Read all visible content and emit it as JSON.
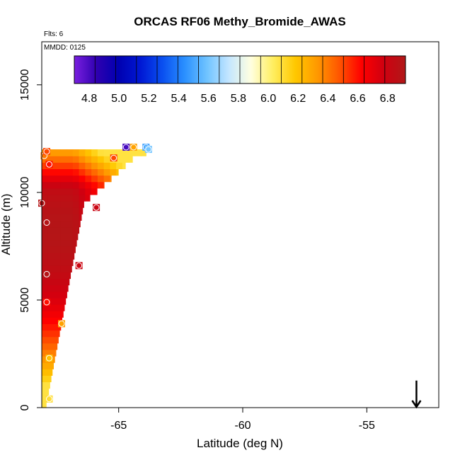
{
  "chart_data": {
    "type": "heatmap",
    "title": "ORCAS RF06 Methy_Bromide_AWAS",
    "note_flts": "Flts: 6",
    "note_mmdd": "MMDD: 0125",
    "xlabel": "Latitude (deg N)",
    "ylabel": "Altitude (m)",
    "xlim": [
      -68.1,
      -52.1
    ],
    "ylim": [
      0,
      17000
    ],
    "x_ticks": [
      -65,
      -60,
      -55
    ],
    "x_tick_labels": [
      "-65",
      "-60",
      "-55"
    ],
    "y_ticks": [
      0,
      5000,
      10000,
      15000
    ],
    "y_tick_labels": [
      "0",
      "5000",
      "10000",
      "15000"
    ],
    "colorbar": {
      "range": [
        4.7,
        6.92
      ],
      "ticks": [
        4.8,
        5.0,
        5.2,
        5.4,
        5.6,
        5.8,
        6.0,
        6.2,
        6.4,
        6.6,
        6.8
      ],
      "tick_labels": [
        "4.8",
        "5.0",
        "5.2",
        "5.4",
        "5.6",
        "5.8",
        "6.0",
        "6.2",
        "6.4",
        "6.6",
        "6.8"
      ],
      "colors": [
        "#7a1fe0",
        "#2f00b0",
        "#0000b0",
        "#0018d4",
        "#0a50f0",
        "#2a90ff",
        "#6fc3ff",
        "#c4e6ff",
        "#ffffe0",
        "#ffee60",
        "#ffc800",
        "#ff9900",
        "#ff5500",
        "#ff0000",
        "#d00010",
        "#b01818"
      ]
    },
    "field": {
      "lat_range": [
        -68.1,
        -63.8
      ],
      "alt_range": [
        0,
        11900
      ],
      "lat_step": 0.25,
      "alt_step": 300
    },
    "observations": [
      {
        "lat": -68.0,
        "alt": 11700,
        "value": 6.4
      },
      {
        "lat": -67.9,
        "alt": 11900,
        "value": 6.5
      },
      {
        "lat": -67.8,
        "alt": 11300,
        "value": 6.6
      },
      {
        "lat": -65.2,
        "alt": 11600,
        "value": 6.5
      },
      {
        "lat": -64.7,
        "alt": 12100,
        "value": 4.8
      },
      {
        "lat": -64.4,
        "alt": 12100,
        "value": 6.3
      },
      {
        "lat": -63.9,
        "alt": 12100,
        "value": 5.5
      },
      {
        "lat": -63.8,
        "alt": 12000,
        "value": 5.6
      },
      {
        "lat": -68.1,
        "alt": 9500,
        "value": 6.9
      },
      {
        "lat": -65.9,
        "alt": 9300,
        "value": 6.8
      },
      {
        "lat": -67.9,
        "alt": 8600,
        "value": 6.9
      },
      {
        "lat": -66.6,
        "alt": 6600,
        "value": 6.8
      },
      {
        "lat": -67.9,
        "alt": 6200,
        "value": 6.9
      },
      {
        "lat": -67.9,
        "alt": 4900,
        "value": 6.6
      },
      {
        "lat": -67.3,
        "alt": 3900,
        "value": 6.3
      },
      {
        "lat": -67.8,
        "alt": 2300,
        "value": 6.2
      },
      {
        "lat": -67.8,
        "alt": 400,
        "value": 6.1
      }
    ],
    "arrow": {
      "lat": -53.0,
      "alt": 600,
      "direction": "down"
    }
  }
}
